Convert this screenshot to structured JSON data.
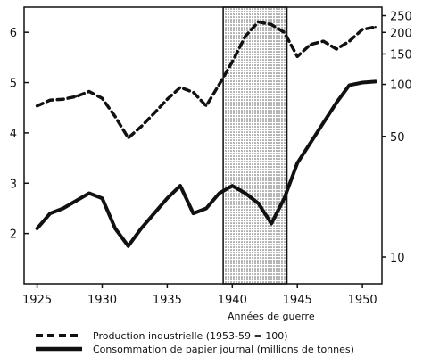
{
  "chart_data": {
    "type": "line",
    "title": "",
    "xlabel": "",
    "xlim": [
      1924,
      1951.5
    ],
    "x_ticks": [
      1925,
      1930,
      1935,
      1940,
      1945,
      1950
    ],
    "left_axis": {
      "label": "",
      "ylim": [
        1,
        6.5
      ],
      "ticks": [
        2,
        3,
        4,
        5,
        6
      ]
    },
    "right_axis": {
      "label": "",
      "log_scale": true,
      "ylim": [
        7,
        280
      ],
      "ticks": [
        10,
        50,
        100,
        150,
        200,
        250
      ]
    },
    "shaded_period": {
      "start": 1939.3,
      "end": 1944.2,
      "label": "Années de guerre"
    },
    "grid": false,
    "legend_placement": "bottom",
    "series": [
      {
        "name": "Production industrielle (1953-59 = 100)",
        "axis": "right",
        "style": "dashed",
        "x": [
          1925,
          1926,
          1927,
          1928,
          1929,
          1930,
          1931,
          1932,
          1933,
          1934,
          1935,
          1936,
          1937,
          1938,
          1939,
          1940,
          1941,
          1942,
          1943,
          1944,
          1945,
          1946,
          1947,
          1948,
          1949,
          1950,
          1951
        ],
        "values": [
          75,
          81,
          82,
          85,
          91,
          83,
          65,
          49,
          57,
          68,
          82,
          96,
          90,
          75,
          100,
          135,
          190,
          230,
          222,
          200,
          145,
          170,
          178,
          160,
          178,
          208,
          215
        ]
      },
      {
        "name": "Consommation de papier journal (millions de tonnes)",
        "axis": "left",
        "style": "solid",
        "x": [
          1925,
          1926,
          1927,
          1928,
          1929,
          1930,
          1931,
          1932,
          1933,
          1934,
          1935,
          1936,
          1937,
          1938,
          1939,
          1940,
          1941,
          1942,
          1943,
          1944,
          1945,
          1946,
          1947,
          1948,
          1949,
          1950,
          1951
        ],
        "values": [
          2.1,
          2.4,
          2.5,
          2.65,
          2.8,
          2.7,
          2.1,
          1.75,
          2.1,
          2.4,
          2.7,
          2.95,
          2.4,
          2.5,
          2.8,
          2.95,
          2.8,
          2.6,
          2.2,
          2.7,
          3.4,
          3.8,
          4.2,
          4.6,
          4.95,
          5.0,
          5.02
        ]
      }
    ]
  }
}
